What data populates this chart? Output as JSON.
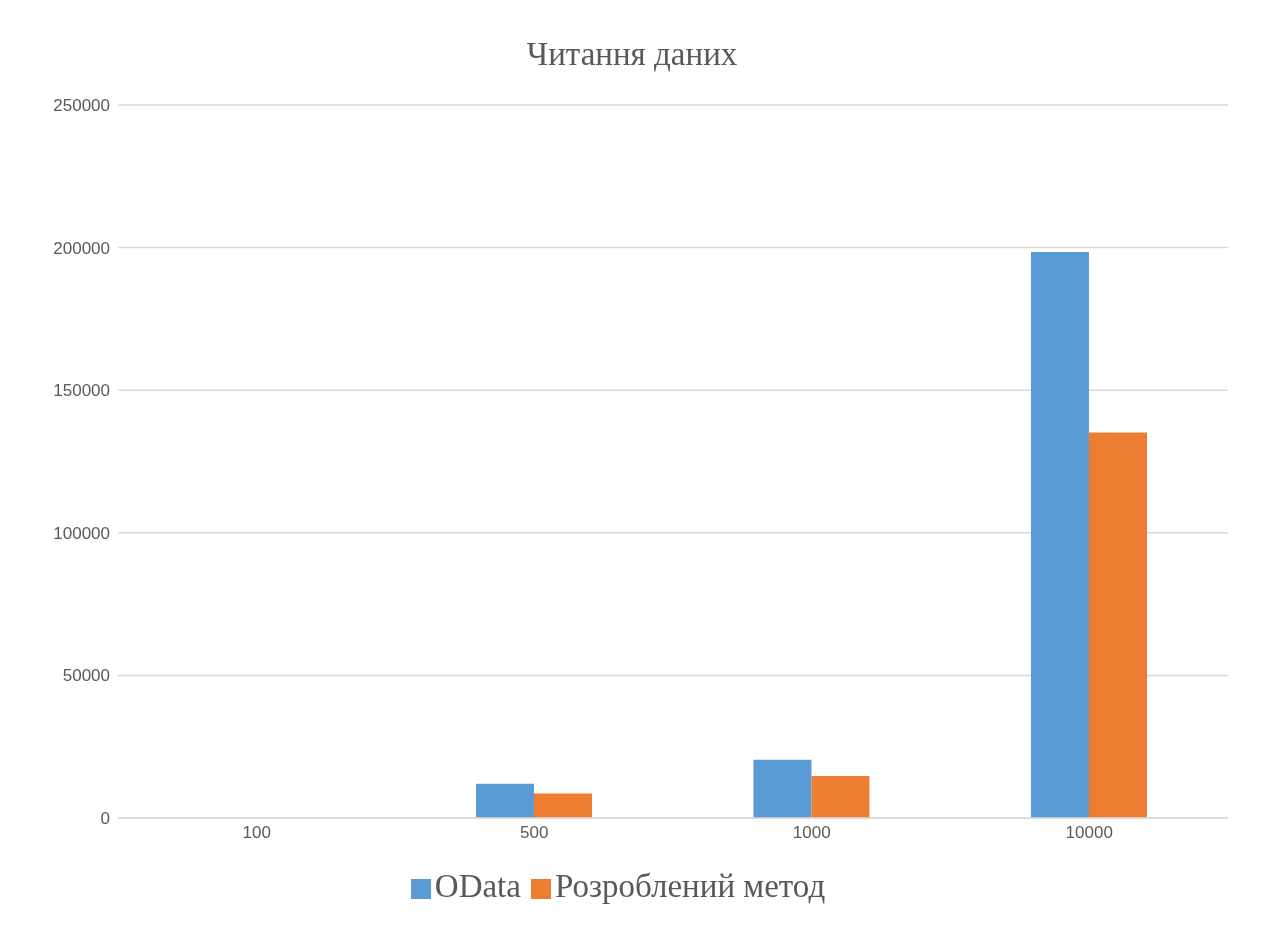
{
  "chart_data": {
    "type": "bar",
    "title": "Читання даних",
    "categories": [
      "100",
      "500",
      "1000",
      "10000"
    ],
    "series": [
      {
        "name": "OData",
        "color": "#5b9bd5",
        "values": [
          null,
          12000,
          20400,
          198500
        ]
      },
      {
        "name": "Розроблений метод",
        "color": "#ed7d31",
        "values": [
          null,
          8600,
          14700,
          135200
        ]
      }
    ],
    "ylim": [
      0,
      250000
    ],
    "yticks": [
      0,
      50000,
      100000,
      150000,
      200000,
      250000
    ],
    "grid": "y",
    "legend": "bottom"
  }
}
